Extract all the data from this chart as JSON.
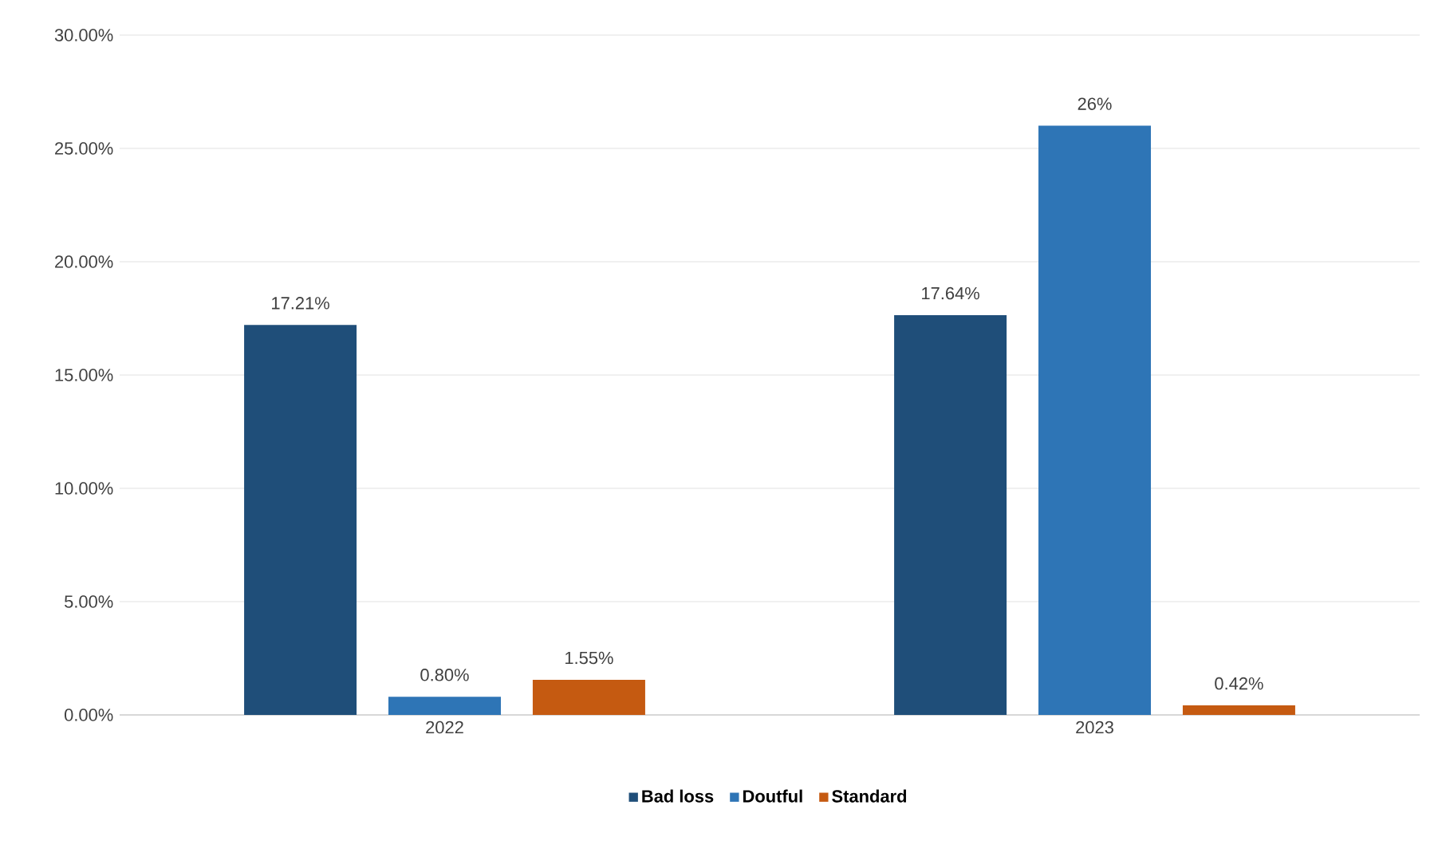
{
  "chart_data": {
    "type": "bar",
    "categories": [
      "2022",
      "2023"
    ],
    "series": [
      {
        "name": "Bad loss",
        "color": "#1f4e79",
        "values": [
          17.21,
          17.64
        ],
        "value_labels": [
          "17.21%",
          "17.64%"
        ]
      },
      {
        "name": "Doutful",
        "color": "#2e75b6",
        "values": [
          0.8,
          26
        ],
        "value_labels": [
          "0.80%",
          "26%"
        ]
      },
      {
        "name": "Standard",
        "color": "#c55a11",
        "values": [
          1.55,
          0.42
        ],
        "value_labels": [
          "1.55%",
          "0.42%"
        ]
      }
    ],
    "ylim": [
      0,
      30
    ],
    "yticks": [
      {
        "value": 0,
        "label": "0.00%"
      },
      {
        "value": 5,
        "label": "5.00%"
      },
      {
        "value": 10,
        "label": "10.00%"
      },
      {
        "value": 15,
        "label": "15.00%"
      },
      {
        "value": 20,
        "label": "20.00%"
      },
      {
        "value": 25,
        "label": "25.00%"
      },
      {
        "value": 30,
        "label": "30.00%"
      }
    ],
    "grid": "y",
    "legend": "bottom"
  }
}
